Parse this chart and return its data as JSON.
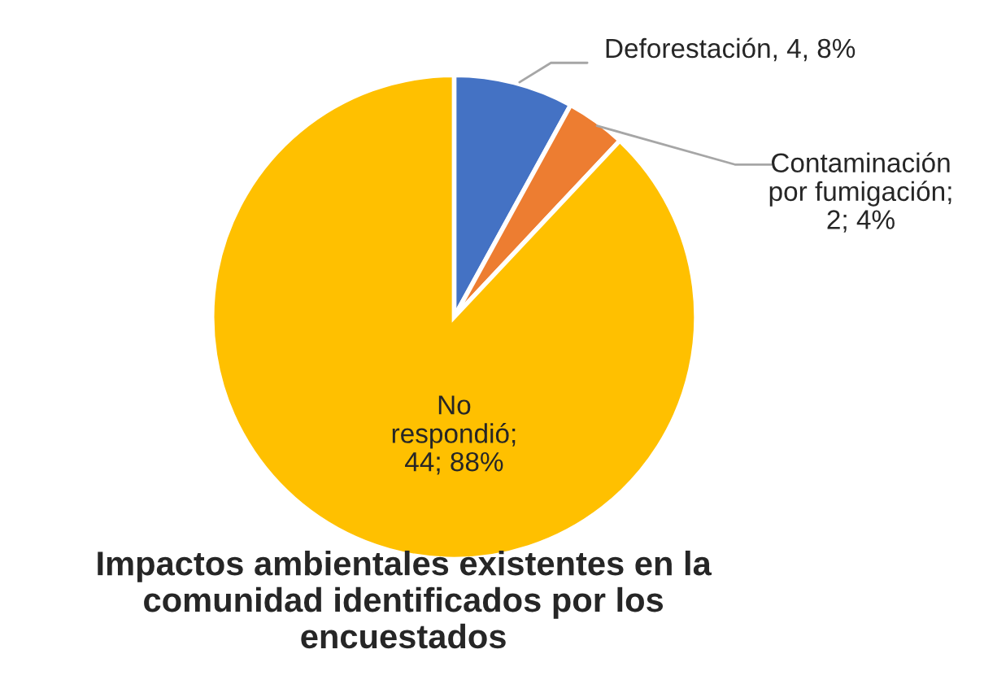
{
  "chart_data": {
    "type": "pie",
    "title": "Impactos ambientales existentes en la\ncomunidad identificados por los\nencuestados",
    "categories": [
      "Deforestación",
      "Contaminación\npor fumigación",
      "No\nrespondió"
    ],
    "values": [
      4,
      2,
      44
    ],
    "value_labels": [
      ", 4, 8%",
      ";\n2; 4%",
      ";\n44; 88%"
    ],
    "colors": [
      "#4472c4",
      "#ed7d31",
      "#ffc000"
    ],
    "legend": false
  }
}
